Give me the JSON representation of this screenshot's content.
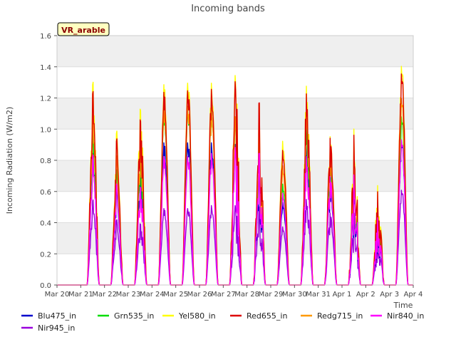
{
  "chart_data": {
    "type": "line",
    "title": "Incoming bands",
    "xlabel": "Time",
    "ylabel": "Incoming Radiation (W/m2)",
    "ylim": [
      0,
      1.6
    ],
    "yticks": [
      0.0,
      0.2,
      0.4,
      0.6,
      0.8,
      1.0,
      1.2,
      1.4,
      1.6
    ],
    "ytick_labels": [
      "0.0",
      "0.2",
      "0.4",
      "0.6",
      "0.8",
      "1.0",
      "1.2",
      "1.4",
      "1.6"
    ],
    "xlim": [
      0,
      15
    ],
    "xticks": [
      0,
      1,
      2,
      3,
      4,
      5,
      6,
      7,
      8,
      9,
      10,
      11,
      12,
      13,
      14,
      15
    ],
    "xtick_labels": [
      "Mar 20",
      "Mar 21",
      "Mar 22",
      "Mar 23",
      "Mar 24",
      "Mar 25",
      "Mar 26",
      "Mar 27",
      "Mar 28",
      "Mar 29",
      "Mar 30",
      "Mar 31",
      "Apr 1",
      "Apr 2",
      "Apr 3",
      "Apr 4"
    ],
    "grid": "horizontal",
    "background_bands": true,
    "legend_placement": "bottom",
    "annotation": {
      "text": "VR_arable",
      "color": "#8b0000",
      "fill": "#ffffc0"
    },
    "days_peak_order": "one diurnal cycle per day from Mar 20 to Apr 3",
    "daily_peaks": {
      "days": [
        "Mar 20",
        "Mar 21",
        "Mar 22",
        "Mar 23",
        "Mar 24",
        "Mar 25",
        "Mar 26",
        "Mar 27",
        "Mar 28",
        "Mar 29",
        "Mar 30",
        "Mar 31",
        "Apr 1",
        "Apr 2",
        "Apr 3"
      ],
      "Red655_in": [
        0.0,
        1.25,
        0.94,
        1.08,
        1.26,
        1.27,
        1.28,
        1.33,
        1.19,
        0.88,
        1.25,
        0.96,
        0.98,
        0.61,
        1.38
      ],
      "Yel580_in": [
        0.0,
        1.31,
        0.99,
        1.15,
        1.31,
        1.32,
        1.32,
        1.37,
        1.18,
        0.94,
        1.3,
        0.97,
        1.02,
        0.65,
        1.43
      ]
    },
    "series": [
      {
        "name": "Blu475_in",
        "color": "#0000cc",
        "day_peaks": [
          0.0,
          0.85,
          0.62,
          0.72,
          0.93,
          0.93,
          0.93,
          0.92,
          0.79,
          0.54,
          0.91,
          0.68,
          0.68,
          0.42,
          0.94
        ]
      },
      {
        "name": "Grn535_in",
        "color": "#00dd00",
        "day_peaks": [
          0.0,
          1.01,
          0.74,
          0.87,
          1.15,
          1.16,
          1.16,
          1.1,
          0.95,
          0.66,
          1.04,
          0.81,
          0.8,
          0.5,
          1.1
        ]
      },
      {
        "name": "Yel580_in",
        "color": "#ffff00",
        "day_peaks": [
          0.0,
          1.31,
          0.99,
          1.15,
          1.31,
          1.32,
          1.32,
          1.37,
          1.18,
          0.94,
          1.3,
          0.97,
          1.02,
          0.65,
          1.43
        ]
      },
      {
        "name": "Red655_in",
        "color": "#dd0000",
        "day_peaks": [
          0.0,
          1.25,
          0.94,
          1.08,
          1.26,
          1.27,
          1.28,
          1.33,
          1.19,
          0.88,
          1.25,
          0.96,
          0.98,
          0.61,
          1.38
        ]
      },
      {
        "name": "Redg715_in",
        "color": "#ff9900",
        "day_peaks": [
          0.0,
          1.1,
          0.83,
          0.95,
          1.17,
          1.17,
          1.16,
          1.1,
          1.03,
          0.78,
          1.16,
          0.88,
          0.87,
          0.56,
          1.22
        ]
      },
      {
        "name": "Nir840_in",
        "color": "#ff00ff",
        "day_peaks": [
          0.0,
          0.84,
          0.65,
          0.64,
          0.84,
          0.84,
          0.86,
          0.9,
          0.86,
          0.6,
          0.84,
          0.71,
          0.72,
          0.44,
          0.95
        ]
      },
      {
        "name": "Nir945_in",
        "color": "#9900dd",
        "day_peaks": [
          0.0,
          0.55,
          0.42,
          0.4,
          0.5,
          0.5,
          0.52,
          0.52,
          0.51,
          0.38,
          0.56,
          0.47,
          0.47,
          0.3,
          0.62
        ]
      }
    ]
  }
}
